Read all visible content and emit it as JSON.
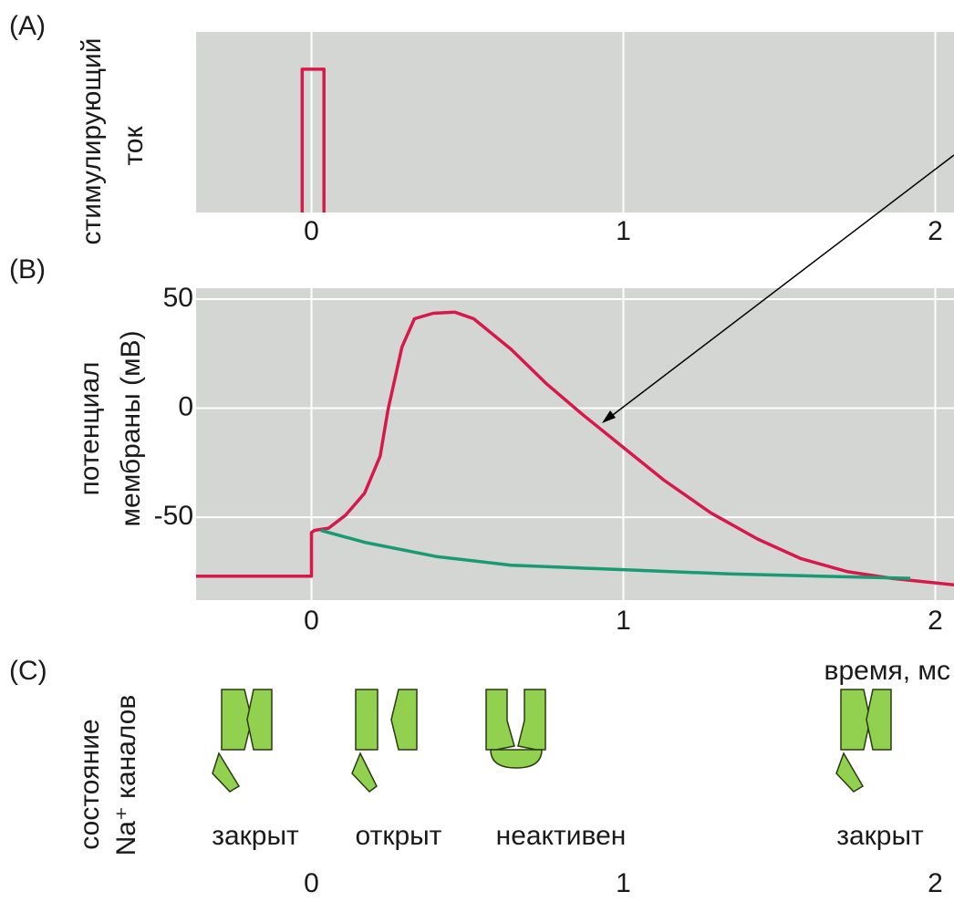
{
  "chart_data": [
    {
      "type": "step-line",
      "panel": "(A)",
      "ylabel": [
        "стимулирующий",
        "ток"
      ],
      "x": [
        -0.03,
        -0.03,
        0.04,
        0.04
      ],
      "values": [
        0,
        1,
        1,
        0
      ],
      "color": "#d6194a",
      "xlim": [
        -0.37,
        2.06
      ],
      "ylim": [
        0,
        1.26
      ],
      "xticks": [
        0,
        1,
        2
      ],
      "grid": true
    },
    {
      "type": "line",
      "panel": "(B)",
      "ylabel": [
        "потенциал",
        "мембраны (мВ)"
      ],
      "xlabel": "время, мс",
      "series": [
        {
          "color": "#d6194a",
          "x": [
            -0.37,
            0,
            0,
            0.01,
            0.055,
            0.11,
            0.17,
            0.22,
            0.245,
            0.29,
            0.33,
            0.39,
            0.46,
            0.52,
            0.64,
            0.755,
            0.87,
            1.0,
            1.13,
            1.28,
            1.43,
            1.57,
            1.72,
            1.86,
            2.06
          ],
          "values": [
            -77,
            -77,
            -57,
            -56,
            -55,
            -49,
            -39,
            -22,
            -1,
            28,
            41,
            43.5,
            44,
            41,
            27,
            11,
            -3,
            -18,
            -33,
            -48,
            -60,
            -69,
            -75,
            -78,
            -81
          ]
        },
        {
          "color": "#1a9a72",
          "x": [
            0.03,
            0.17,
            0.4,
            0.64,
            0.99,
            1.34,
            1.63,
            1.92
          ],
          "values": [
            -56,
            -61.5,
            -68,
            -72,
            -74,
            -76,
            -77,
            -78
          ]
        }
      ],
      "xlim": [
        -0.37,
        2.06
      ],
      "ylim": [
        -88,
        55
      ],
      "xticks": [
        0,
        1,
        2
      ],
      "yticks": [
        50,
        0,
        -50
      ],
      "grid": true
    },
    {
      "type": "states",
      "panel": "(C)",
      "ylabel": [
        "состояние",
        "Na⁺ каналов"
      ],
      "categories": [
        "закрыт",
        "открыт",
        "неактивен",
        "закрыт"
      ],
      "xlim": [
        -0.37,
        2.06
      ],
      "xticks": [
        0,
        1,
        2
      ]
    }
  ]
}
